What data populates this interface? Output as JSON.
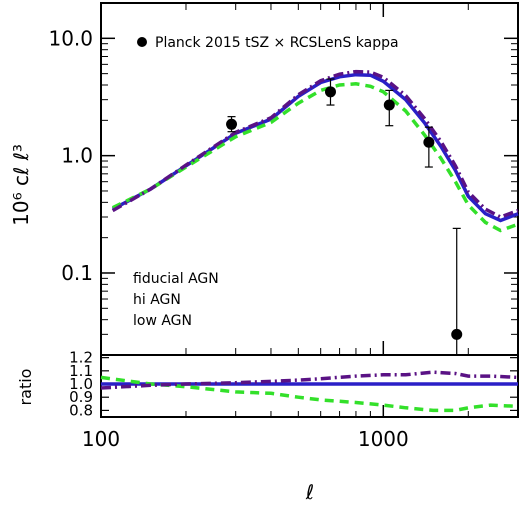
{
  "chart_data": [
    {
      "type": "line",
      "xlabel": "ℓ",
      "ylabel": "10⁶ cℓ ℓ³",
      "xscale": "log",
      "yscale": "log",
      "xlim": [
        100,
        3000
      ],
      "ylim": [
        0.02,
        20
      ],
      "x_ticks": [
        100,
        1000
      ],
      "x_tick_labels": [
        "100",
        "1000"
      ],
      "y_ticks": [
        0.1,
        1.0,
        10.0
      ],
      "y_tick_labels": [
        "0.1",
        "1.0",
        "10.0"
      ],
      "grid": false,
      "legend_position": "top-left",
      "data_legend": "Planck 2015 tSZ × RCSLenS kappa",
      "series": [
        {
          "name": "fiducial AGN",
          "color": "#2a1fc7",
          "style": "solid",
          "x": [
            110,
            150,
            200,
            300,
            400,
            500,
            600,
            700,
            800,
            900,
            1000,
            1200,
            1400,
            1600,
            1800,
            2000,
            2300,
            2600,
            3000
          ],
          "y": [
            0.35,
            0.52,
            0.82,
            1.55,
            2.05,
            3.2,
            4.2,
            4.7,
            4.9,
            4.85,
            4.3,
            3.0,
            1.9,
            1.2,
            0.75,
            0.45,
            0.32,
            0.28,
            0.32
          ]
        },
        {
          "name": "hi AGN",
          "color": "#33e02a",
          "style": "dashed",
          "x": [
            110,
            150,
            200,
            300,
            400,
            500,
            600,
            700,
            800,
            900,
            1000,
            1200,
            1400,
            1600,
            1800,
            2000,
            2300,
            2600,
            3000
          ],
          "y": [
            0.36,
            0.52,
            0.8,
            1.45,
            1.92,
            2.8,
            3.6,
            4.0,
            4.1,
            3.9,
            3.5,
            2.4,
            1.5,
            0.95,
            0.6,
            0.38,
            0.27,
            0.23,
            0.26
          ]
        },
        {
          "name": "low AGN",
          "color": "#5a1285",
          "style": "dashdot",
          "x": [
            110,
            150,
            200,
            300,
            400,
            500,
            600,
            700,
            800,
            900,
            1000,
            1200,
            1400,
            1600,
            1800,
            2000,
            2300,
            2600,
            3000
          ],
          "y": [
            0.34,
            0.52,
            0.83,
            1.58,
            2.1,
            3.3,
            4.35,
            4.95,
            5.2,
            5.15,
            4.65,
            3.25,
            2.07,
            1.32,
            0.82,
            0.49,
            0.35,
            0.3,
            0.34
          ]
        }
      ],
      "points": {
        "name": "Planck 2015 tSZ × RCSLenS kappa",
        "x": [
          290,
          650,
          1050,
          1450,
          1820
        ],
        "y": [
          1.85,
          3.5,
          2.7,
          1.3,
          0.03
        ],
        "err_low": [
          1.6,
          2.7,
          1.8,
          0.8,
          0.001
        ],
        "err_high": [
          2.15,
          4.5,
          3.6,
          1.75,
          0.24
        ]
      }
    },
    {
      "type": "line",
      "xlabel": "ℓ",
      "ylabel": "ratio",
      "xscale": "log",
      "xlim": [
        100,
        3000
      ],
      "ylim": [
        0.75,
        1.22
      ],
      "y_ticks": [
        0.8,
        0.9,
        1.0,
        1.1,
        1.2
      ],
      "y_tick_labels": [
        "0.8",
        "0.9",
        "1.0",
        "1.1",
        "1.2"
      ],
      "grid": false,
      "series": [
        {
          "name": "fiducial AGN",
          "color": "#2a1fc7",
          "style": "solid",
          "x": [
            100,
            3000
          ],
          "y": [
            1.0,
            1.0
          ]
        },
        {
          "name": "hi AGN",
          "color": "#33e02a",
          "style": "dashed",
          "x": [
            100,
            150,
            200,
            300,
            400,
            500,
            600,
            800,
            1000,
            1200,
            1500,
            1800,
            2000,
            2400,
            3000
          ],
          "y": [
            1.05,
            1.0,
            0.98,
            0.94,
            0.93,
            0.9,
            0.88,
            0.86,
            0.84,
            0.82,
            0.8,
            0.8,
            0.82,
            0.84,
            0.83
          ]
        },
        {
          "name": "low AGN",
          "color": "#5a1285",
          "style": "dashdot",
          "x": [
            100,
            150,
            200,
            300,
            400,
            500,
            600,
            800,
            1000,
            1200,
            1500,
            1800,
            2000,
            2400,
            3000
          ],
          "y": [
            0.97,
            0.99,
            1.0,
            1.01,
            1.02,
            1.03,
            1.04,
            1.06,
            1.07,
            1.07,
            1.09,
            1.08,
            1.06,
            1.06,
            1.05
          ]
        }
      ]
    }
  ]
}
